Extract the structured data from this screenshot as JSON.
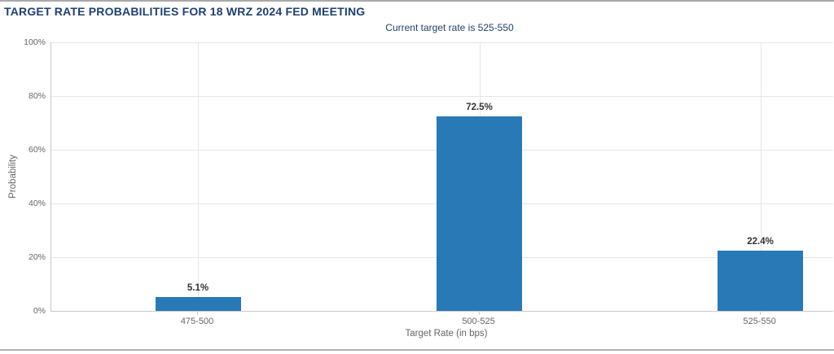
{
  "chart_data": {
    "type": "bar",
    "title": "TARGET RATE PROBABILITIES FOR 18 WRZ 2024 FED MEETING",
    "subtitle": "Current target rate is 525-550",
    "xlabel": "Target Rate (in bps)",
    "ylabel": "Probability",
    "categories": [
      "475-500",
      "500-525",
      "525-550"
    ],
    "values": [
      5.1,
      72.5,
      22.4
    ],
    "bar_labels": [
      "5.1%",
      "72.5%",
      "22.4%"
    ],
    "ylim": [
      0,
      100
    ],
    "ytick_values": [
      0,
      20,
      40,
      60,
      80,
      100
    ],
    "ytick_labels": [
      "0%",
      "20%",
      "40%",
      "60%",
      "80%",
      "100%"
    ],
    "grid": true,
    "legend": false,
    "band_centers_pct": [
      18.75,
      54.74,
      90.68
    ],
    "colors": {
      "bar": "#2879b6",
      "title_text": "#21406e",
      "axis_text": "#666666",
      "grid_line": "#e6e6e6",
      "axis_line": "#c9c9c9"
    }
  }
}
